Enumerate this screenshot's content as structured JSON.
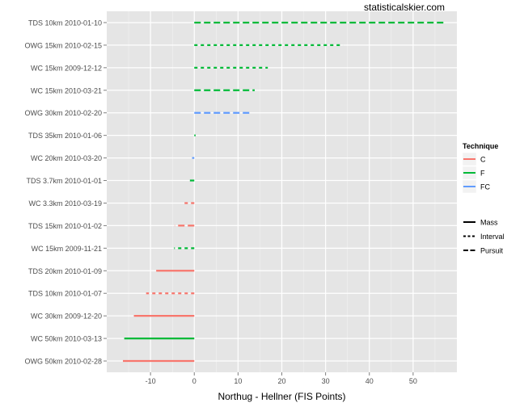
{
  "watermark": "statisticalskier.com",
  "chart_data": {
    "type": "segment",
    "title": "",
    "xlabel": "Northug - Hellner (FIS Points)",
    "ylabel": "",
    "xlim": [
      -20,
      60
    ],
    "x_ticks": [
      -10,
      0,
      10,
      20,
      30,
      40,
      50
    ],
    "grid": true,
    "background": "#e5e5e5",
    "legend_position": "right",
    "technique_legend": {
      "title": "Technique",
      "items": [
        {
          "name": "C",
          "color": "#f8766d"
        },
        {
          "name": "F",
          "color": "#00ba38"
        },
        {
          "name": "FC",
          "color": "#619cff"
        }
      ]
    },
    "style_legend": {
      "items": [
        {
          "name": "Mass",
          "dash": "solid"
        },
        {
          "name": "Interval",
          "dash": "dotted"
        },
        {
          "name": "Pursuit",
          "dash": "dashed"
        }
      ]
    },
    "races": [
      {
        "race": "TDS 10km 2010-01-10",
        "value": 57,
        "technique": "F",
        "style": "Pursuit"
      },
      {
        "race": "OWG 15km 2010-02-15",
        "value": 34,
        "technique": "F",
        "style": "Interval"
      },
      {
        "race": "WC 15km 2009-12-12",
        "value": 16.8,
        "technique": "F",
        "style": "Interval"
      },
      {
        "race": "WC 15km 2010-03-21",
        "value": 13.8,
        "technique": "F",
        "style": "Pursuit"
      },
      {
        "race": "OWG 30km 2010-02-20",
        "value": 13.2,
        "technique": "FC",
        "style": "Pursuit"
      },
      {
        "race": "TDS 35km 2010-01-06",
        "value": 0.3,
        "technique": "F",
        "style": "Mass"
      },
      {
        "race": "WC 20km 2010-03-20",
        "value": -0.5,
        "technique": "FC",
        "style": "Pursuit"
      },
      {
        "race": "TDS 3.7km 2010-01-01",
        "value": -1,
        "technique": "F",
        "style": "Pursuit"
      },
      {
        "race": "WC 3.3km 2010-03-19",
        "value": -2.7,
        "technique": "C",
        "style": "Interval"
      },
      {
        "race": "TDS 15km 2010-01-02",
        "value": -4.5,
        "technique": "C",
        "style": "Pursuit"
      },
      {
        "race": "WC 15km 2009-11-21",
        "value": -4.6,
        "technique": "F",
        "style": "Interval"
      },
      {
        "race": "TDS 20km 2010-01-09",
        "value": -8.7,
        "technique": "C",
        "style": "Mass"
      },
      {
        "race": "TDS 10km 2010-01-07",
        "value": -11,
        "technique": "C",
        "style": "Interval"
      },
      {
        "race": "WC 30km 2009-12-20",
        "value": -13.8,
        "technique": "C",
        "style": "Mass"
      },
      {
        "race": "WC 50km 2010-03-13",
        "value": -16,
        "technique": "F",
        "style": "Mass"
      },
      {
        "race": "OWG 50km 2010-02-28",
        "value": -16.3,
        "technique": "C",
        "style": "Mass"
      }
    ]
  }
}
